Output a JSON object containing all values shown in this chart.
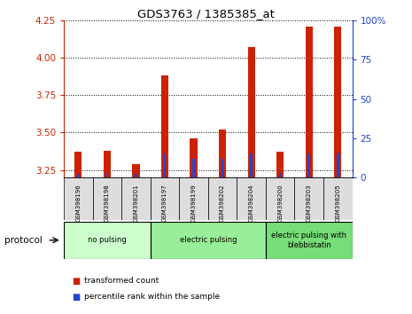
{
  "title": "GDS3763 / 1385385_at",
  "samples": [
    "GSM398196",
    "GSM398198",
    "GSM398201",
    "GSM398197",
    "GSM398199",
    "GSM398202",
    "GSM398204",
    "GSM398200",
    "GSM398203",
    "GSM398205"
  ],
  "transformed_count": [
    3.37,
    3.38,
    3.29,
    3.88,
    3.46,
    3.52,
    4.07,
    3.37,
    4.21,
    4.21
  ],
  "percentile_rank": [
    2,
    3,
    2,
    15,
    12,
    12,
    15,
    3,
    15,
    15
  ],
  "ylim_left": [
    3.2,
    4.25
  ],
  "ylim_right": [
    0,
    100
  ],
  "yticks_left": [
    3.25,
    3.5,
    3.75,
    4.0,
    4.25
  ],
  "yticks_right": [
    0,
    25,
    50,
    75,
    100
  ],
  "groups": [
    {
      "label": "no pulsing",
      "start": 0,
      "end": 3,
      "color": "#ccffcc"
    },
    {
      "label": "electric pulsing",
      "start": 3,
      "end": 7,
      "color": "#99ee99"
    },
    {
      "label": "electric pulsing with\nblebbistatin",
      "start": 7,
      "end": 10,
      "color": "#77dd77"
    }
  ],
  "bar_color_red": "#cc2200",
  "bar_color_blue": "#2244cc",
  "background_color": "#ffffff",
  "label_color_left": "#cc2200",
  "label_color_right": "#2244cc",
  "bar_width": 0.25,
  "blue_bar_width": 0.08,
  "protocol_label": "protocol"
}
